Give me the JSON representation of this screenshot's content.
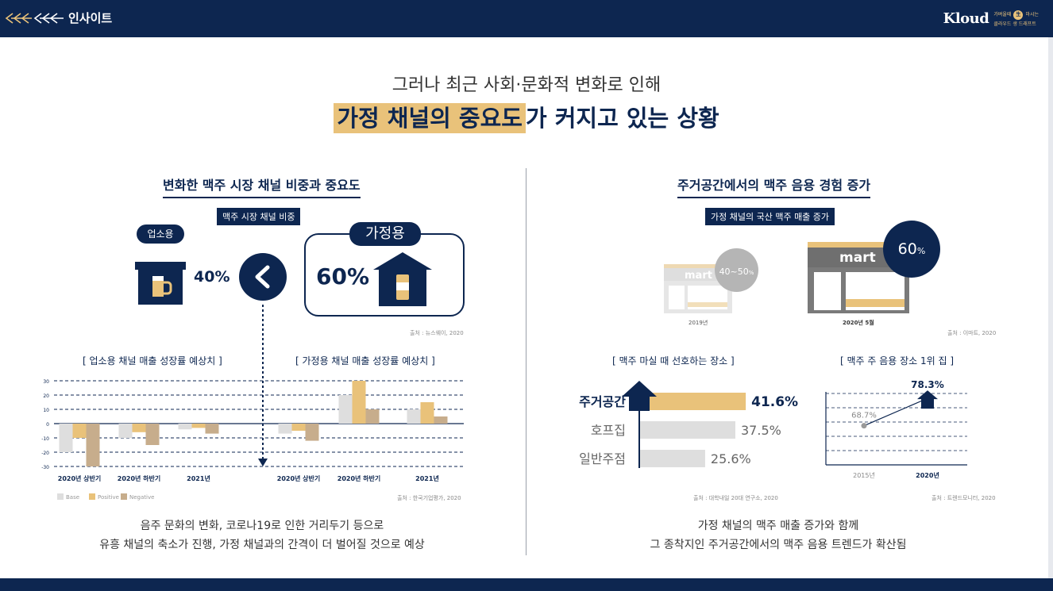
{
  "header": {
    "section_title": "인사이트",
    "brand_name": "Kloud",
    "brand_sub_1": "가벼울때",
    "brand_sub_badge": "生",
    "brand_sub_2": "마시는",
    "brand_sub_3": "클라우드 생 드래프트"
  },
  "headline": {
    "sub": "그러나 최근 사회·문화적 변화로 인해",
    "highlight": "가정 채널의 중요도",
    "rest": "가 커지고 있는 상황"
  },
  "left": {
    "title": "변화한 맥주 시장 채널 비중과 중요도",
    "tag": "맥주 시장 채널 비중",
    "business_label": "업소용",
    "business_pct": "40%",
    "home_label": "가정용",
    "home_pct": "60%",
    "source_top": "출처 : 뉴스웨이, 2020",
    "chart_left_title": "[ 업소용 채널 매출 성장률 예상치 ]",
    "chart_right_title": "[ 가정용 채널 매출 성장률 예상치 ]",
    "source_bottom": "출처 : 한국기업평가, 2020",
    "caption_line1": "음주 문화의 변화, 코로나19로 인한 거리두기 등으로",
    "caption_line2": "유흥 채널의 축소가 진행, 가정 채널과의 간격이 더 벌어질 것으로 예상"
  },
  "right": {
    "title": "주거공간에서의 맥주 음용 경험 증가",
    "tag": "가정 채널의 국산 맥주 매출 증가",
    "mart_text": "mart",
    "store_2019_pct": "40~50",
    "store_2019_unit": "%",
    "store_2019_year": "2019년",
    "store_2020_pct": "60",
    "store_2020_unit": "%",
    "store_2020_year": "2020년 5월",
    "source_top": "출처 : 이마트, 2020",
    "pref_title": "[ 맥주 마실 때 선호하는 장소 ]",
    "source_pref": "출처 : 대학내일 20대 연구소, 2020",
    "line_title": "[ 맥주 주 음용 장소 1위 집 ]",
    "source_line": "출처 : 트렌드모니터, 2020",
    "caption_line1": "가정 채널의 맥주 매출 증가와 함께",
    "caption_line2": "그 종착지인 주거공간에서의 맥주 음용 트렌드가 확산됨"
  },
  "chart_data": [
    {
      "type": "bar",
      "title": "[ 업소용 채널 매출 성장률 예상치 ]",
      "categories": [
        "2020년 상반기",
        "2020년 하반기",
        "2021년"
      ],
      "series": [
        {
          "name": "Base",
          "values": [
            -20,
            -10,
            -4
          ]
        },
        {
          "name": "Positive",
          "values": [
            -10,
            -6,
            -3
          ]
        },
        {
          "name": "Negative",
          "values": [
            -30,
            -15,
            -7
          ]
        }
      ],
      "yticks": [
        30,
        20,
        10,
        0,
        -10,
        -20,
        -30
      ],
      "ylim": [
        -30,
        30
      ],
      "legend": [
        "Base",
        "Positive",
        "Negative"
      ],
      "colors": [
        "#dedede",
        "#e9c27a",
        "#c7ad8c"
      ]
    },
    {
      "type": "bar",
      "title": "[ 가정용 채널 매출 성장률 예상치 ]",
      "categories": [
        "2020년 상반기",
        "2020년 하반기",
        "2021년"
      ],
      "series": [
        {
          "name": "Base",
          "values": [
            -7,
            20,
            10
          ]
        },
        {
          "name": "Positive",
          "values": [
            -5,
            30,
            15
          ]
        },
        {
          "name": "Negative",
          "values": [
            -12,
            10,
            5
          ]
        }
      ],
      "ylim": [
        -30,
        30
      ],
      "colors": [
        "#dedede",
        "#e9c27a",
        "#c7ad8c"
      ]
    },
    {
      "type": "bar",
      "title": "[ 맥주 마실 때 선호하는 장소 ]",
      "categories": [
        "주거공간",
        "호프집",
        "일반주점"
      ],
      "values": [
        41.6,
        37.5,
        25.6
      ],
      "labels": [
        "41.6%",
        "37.5%",
        "25.6%"
      ]
    },
    {
      "type": "line",
      "title": "[ 맥주 주 음용 장소 1위 집 ]",
      "x": [
        "2015년",
        "2020년"
      ],
      "values": [
        68.7,
        78.3
      ],
      "labels": [
        "68.7%",
        "78.3%"
      ]
    }
  ]
}
